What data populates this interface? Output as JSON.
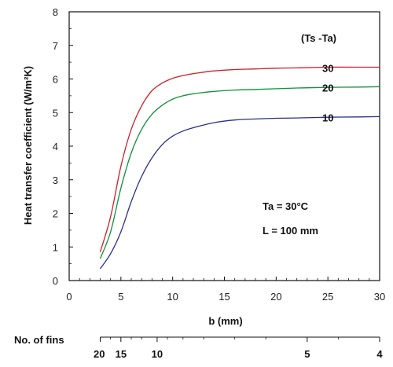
{
  "chart_data": {
    "type": "line",
    "xlabel": "b (mm)",
    "ylabel": "Heat transfer coefficient (W/m²K)",
    "xlim": [
      0,
      30
    ],
    "ylim": [
      0,
      8
    ],
    "x_ticks": [
      "0",
      "5",
      "10",
      "15",
      "20",
      "25",
      "30"
    ],
    "y_ticks": [
      "0",
      "1",
      "2",
      "3",
      "4",
      "5",
      "6",
      "7",
      "8"
    ],
    "grid": false,
    "legend_title": "(Ts -Ta)",
    "annotations": [
      "Ta = 30°C",
      "L = 100 mm"
    ],
    "secondary_axis": {
      "label": "No. of fins",
      "ticks": [
        {
          "label": "20",
          "b": 3
        },
        {
          "label": "15",
          "b": 5
        },
        {
          "label": "10",
          "b": 8.5
        },
        {
          "label": "5",
          "b": 23
        },
        {
          "label": "4",
          "b": 30
        }
      ]
    },
    "series": [
      {
        "name": "30",
        "color": "#d0202a",
        "x": [
          3,
          4,
          5,
          6,
          7,
          8,
          9,
          10,
          11,
          12,
          14,
          16,
          18,
          20,
          22,
          25,
          28,
          30
        ],
        "y": [
          0.85,
          1.9,
          3.4,
          4.5,
          5.2,
          5.65,
          5.88,
          6.02,
          6.1,
          6.16,
          6.24,
          6.28,
          6.3,
          6.32,
          6.33,
          6.35,
          6.35,
          6.35
        ]
      },
      {
        "name": "20",
        "color": "#10903a",
        "x": [
          3,
          4,
          5,
          6,
          7,
          8,
          9,
          10,
          11,
          12,
          14,
          16,
          18,
          20,
          22,
          25,
          28,
          30
        ],
        "y": [
          0.65,
          1.45,
          2.75,
          3.8,
          4.5,
          4.95,
          5.22,
          5.4,
          5.5,
          5.56,
          5.63,
          5.67,
          5.69,
          5.71,
          5.73,
          5.75,
          5.76,
          5.77
        ]
      },
      {
        "name": "10",
        "color": "#2a2f8c",
        "x": [
          3,
          4,
          5,
          6,
          7,
          8,
          9,
          10,
          11,
          12,
          14,
          16,
          18,
          20,
          22,
          25,
          28,
          30
        ],
        "y": [
          0.35,
          0.8,
          1.45,
          2.35,
          3.1,
          3.65,
          4.05,
          4.3,
          4.45,
          4.55,
          4.7,
          4.78,
          4.81,
          4.83,
          4.84,
          4.86,
          4.87,
          4.88
        ]
      }
    ]
  }
}
